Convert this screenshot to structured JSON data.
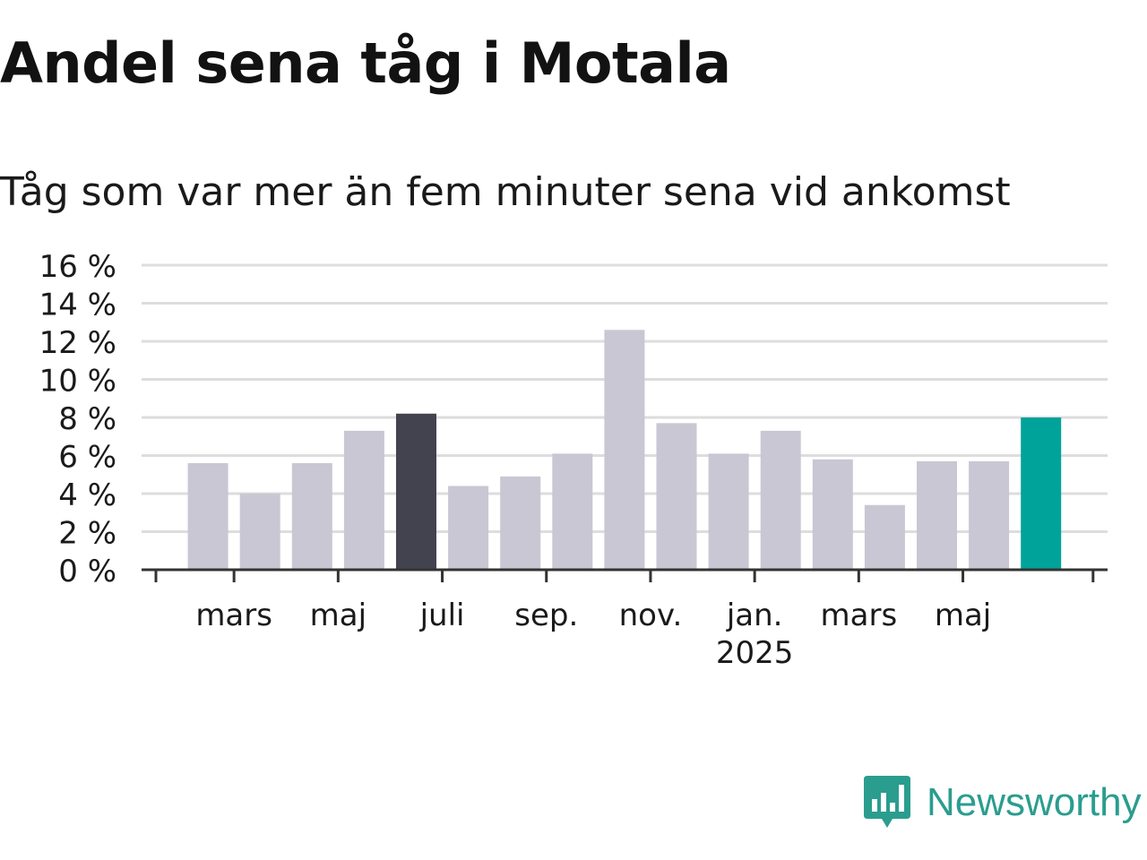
{
  "title": "Andel sena tåg i Motala",
  "subtitle": "Tåg som var mer än fem minuter sena vid ankomst",
  "brand": {
    "name": "Newsworthy",
    "logo_icon": "bar-chart-speech-bubble-icon",
    "color": "#2a9d8f"
  },
  "colors": {
    "bar_default": "#c8c7d3",
    "bar_highlight_previous": "#43424f",
    "bar_highlight_current": "#00a39a",
    "grid": "#dddddd",
    "axis": "#333333"
  },
  "chart_data": {
    "type": "bar",
    "ylim": [
      0,
      16
    ],
    "ytick_values": [
      0,
      2,
      4,
      6,
      8,
      10,
      12,
      14,
      16
    ],
    "ytick_labels": [
      "0 %",
      "2 %",
      "4 %",
      "6 %",
      "8 %",
      "10 %",
      "12 %",
      "14 %",
      "16 %"
    ],
    "xtick_labels": [
      {
        "month_index": 1,
        "label": "mars",
        "year": ""
      },
      {
        "month_index": 3,
        "label": "maj",
        "year": ""
      },
      {
        "month_index": 5,
        "label": "juli",
        "year": ""
      },
      {
        "month_index": 7,
        "label": "sep.",
        "year": ""
      },
      {
        "month_index": 9,
        "label": "nov.",
        "year": ""
      },
      {
        "month_index": 11,
        "label": "jan.",
        "year": "2025"
      },
      {
        "month_index": 13,
        "label": "mars",
        "year": ""
      },
      {
        "month_index": 15,
        "label": "maj",
        "year": ""
      }
    ],
    "values": [
      5.6,
      4.0,
      5.6,
      7.3,
      8.2,
      4.4,
      4.9,
      6.1,
      12.6,
      7.7,
      6.1,
      7.3,
      5.8,
      3.4,
      5.7,
      5.7,
      8.0
    ],
    "highlights": {
      "4": "previous_year",
      "16": "current"
    },
    "grid": true,
    "legend": "none"
  }
}
